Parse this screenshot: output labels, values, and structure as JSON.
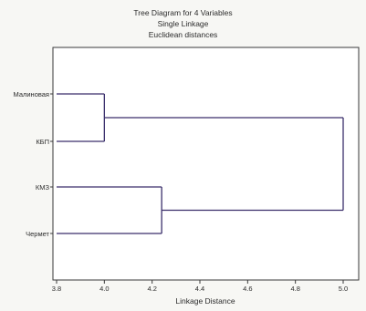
{
  "chart_data": {
    "type": "dendrogram",
    "title": "Tree Diagram for 4 Variables",
    "subtitle_1": "Single Linkage",
    "subtitle_2": "Euclidean distances",
    "xlabel": "Linkage Distance",
    "xlim": [
      3.8,
      5.1
    ],
    "xticks": [
      "3.8",
      "4.0",
      "4.2",
      "4.4",
      "4.6",
      "4.8",
      "5.0"
    ],
    "leaves": [
      "Малиновая",
      "КБП",
      "КМЗ",
      "Чермет"
    ],
    "merges": [
      {
        "left": "Малиновая",
        "right": "КБП",
        "distance": 4.0
      },
      {
        "left": "КМЗ",
        "right": "Чермет",
        "distance": 4.24
      },
      {
        "left": "Малиновая+КБП",
        "right": "КМЗ+Чермет",
        "distance": 5.0
      }
    ],
    "line_color": "#3a2f6b"
  }
}
